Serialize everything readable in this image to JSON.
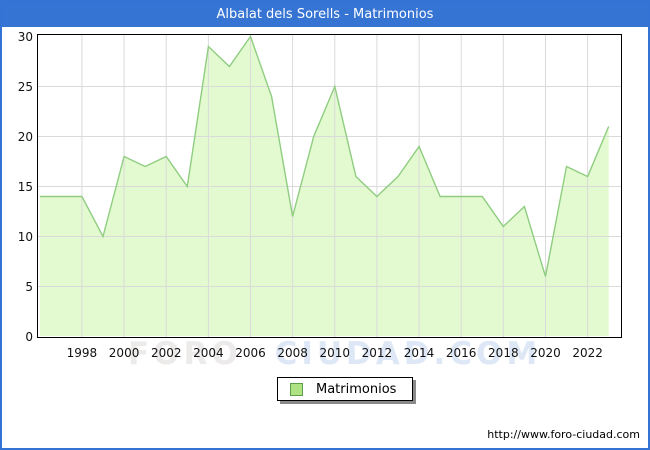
{
  "window": {
    "title": "Albalat dels Sorells - Matrimonios",
    "footer_url": "http://www.foro-ciudad.com",
    "watermark": {
      "part1": "FORO",
      "part2": "CIUDAD.COM"
    }
  },
  "legend": {
    "label": "Matrimonios"
  },
  "colors": {
    "titlebar_bg": "#3674d4",
    "titlebar_text": "#ffffff",
    "outer_border": "#3472d3",
    "area_fill": "#e3fad0",
    "area_line": "#8fcd80",
    "gridline": "#dadada",
    "plot_border": "#000000",
    "legend_swatch_fill": "#aee283",
    "legend_swatch_border": "#5d9e4a",
    "watermark_part1": "#edeaea",
    "watermark_part2": "#dde7f6"
  },
  "chart_data": {
    "type": "area",
    "title": "Albalat dels Sorells - Matrimonios",
    "series_name": "Matrimonios",
    "categories": [
      1996,
      1997,
      1998,
      1999,
      2000,
      2001,
      2002,
      2003,
      2004,
      2005,
      2006,
      2007,
      2008,
      2009,
      2010,
      2011,
      2012,
      2013,
      2014,
      2015,
      2016,
      2017,
      2018,
      2019,
      2020,
      2021,
      2022,
      2023
    ],
    "values": [
      14,
      14,
      14,
      10,
      18,
      17,
      18,
      15,
      29,
      27,
      30,
      24,
      12,
      20,
      25,
      16,
      14,
      16,
      19,
      14,
      14,
      14,
      11,
      13,
      6,
      17,
      16,
      21
    ],
    "xlabel": "",
    "ylabel": "",
    "ylim": [
      0,
      30
    ],
    "y_ticks": [
      0,
      5,
      10,
      15,
      20,
      25,
      30
    ],
    "x_tick_labels": [
      1998,
      2000,
      2002,
      2004,
      2006,
      2008,
      2010,
      2012,
      2014,
      2016,
      2018,
      2020,
      2022
    ],
    "grid": true,
    "legend_position": "bottom-center"
  }
}
